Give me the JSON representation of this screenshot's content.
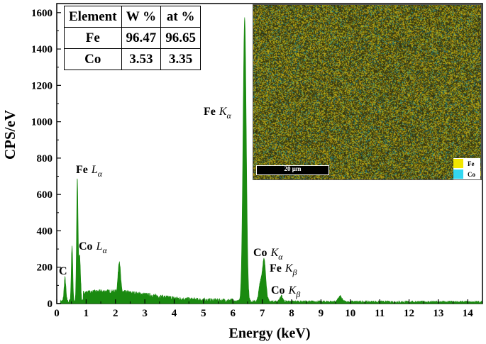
{
  "chart_data": {
    "type": "line",
    "xlabel": "Energy (keV)",
    "ylabel": "CPS/eV",
    "xlim": [
      0,
      14.5
    ],
    "ylim": [
      0,
      1650
    ],
    "x_ticks": [
      "0",
      "1",
      "2",
      "3",
      "4",
      "5",
      "6",
      "7",
      "8",
      "9",
      "10",
      "11",
      "12",
      "13",
      "14"
    ],
    "y_ticks": [
      "0",
      "200",
      "400",
      "600",
      "800",
      "1000",
      "1200",
      "1400",
      "1600"
    ],
    "series_color": "#1a8a10",
    "peaks": [
      {
        "element": "C",
        "energy": 0.28,
        "cps": 130
      },
      {
        "element": "Fe L",
        "energy": 0.52,
        "cps": 310
      },
      {
        "element": "Fe L",
        "energy": 0.7,
        "cps": 670
      },
      {
        "element": "Co L",
        "energy": 0.78,
        "cps": 250
      },
      {
        "element": "",
        "energy": 2.13,
        "cps": 170
      },
      {
        "element": "Fe Kα",
        "energy": 6.4,
        "cps": 1560
      },
      {
        "element": "Fe Kβ",
        "energy": 7.06,
        "cps": 230
      },
      {
        "element": "Co Kα",
        "energy": 6.93,
        "cps": 90
      },
      {
        "element": "Co Kβ",
        "energy": 7.65,
        "cps": 30
      },
      {
        "element": "",
        "energy": 9.65,
        "cps": 30
      }
    ],
    "annotations": [
      {
        "text": "C",
        "sub": ""
      },
      {
        "text": "Fe",
        "italic": "L",
        "sub": "α"
      },
      {
        "text": "Co",
        "italic": "L",
        "sub": "α"
      },
      {
        "text": "Fe",
        "italic": "K",
        "sub": "α"
      },
      {
        "text": "Co",
        "italic": "K",
        "sub": "α"
      },
      {
        "text": "Fe",
        "italic": "K",
        "sub": "β"
      },
      {
        "text": "Co",
        "italic": "K",
        "sub": "β"
      }
    ]
  },
  "table": {
    "headers": [
      "Element",
      "W %",
      "at %"
    ],
    "rows": [
      [
        "Fe",
        "96.47",
        "96.65"
      ],
      [
        "Co",
        "3.53",
        "3.35"
      ]
    ]
  },
  "inset": {
    "scale_label": "20 µm",
    "legend": [
      {
        "label": "Fe",
        "color": "#f2e600"
      },
      {
        "label": "Co",
        "color": "#33d6f0"
      }
    ]
  }
}
